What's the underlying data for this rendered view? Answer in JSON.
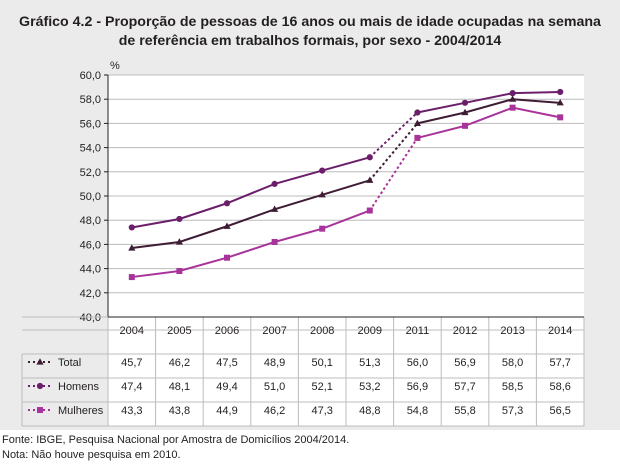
{
  "title_line1": "Gráfico 4.2 - Proporção de pessoas de 16 anos ou mais de idade ocupadas na semana",
  "title_line2": "de referência em trabalhos formais, por sexo - 2004/2014",
  "unit_label": "%",
  "source": "Fonte: IBGE, Pesquisa Nacional por Amostra de Domicílios 2004/2014.",
  "note": "Nota: Não houve pesquisa em 2010.",
  "colors": {
    "total": "#3f1d35",
    "homens": "#6b1f6b",
    "mulheres": "#a8339b",
    "grid": "#bcbcbc",
    "panel": "#ebebeb",
    "plot_bg": "#ffffff"
  },
  "chart_data": {
    "type": "line",
    "title": "Proporção de pessoas de 16 anos ou mais de idade ocupadas na semana de referência em trabalhos formais, por sexo - 2004/2014",
    "ylabel": "%",
    "ylim": [
      40,
      60
    ],
    "y_ticks": [
      "40,0",
      "42,0",
      "44,0",
      "46,0",
      "48,0",
      "50,0",
      "52,0",
      "54,0",
      "56,0",
      "58,0",
      "60,0"
    ],
    "categories": [
      "2004",
      "2005",
      "2006",
      "2007",
      "2008",
      "2009",
      "2011",
      "2012",
      "2013",
      "2014"
    ],
    "gap_after_index": 5,
    "series": [
      {
        "key": "total",
        "name": "Total",
        "marker": "triangle",
        "values": [
          45.7,
          46.2,
          47.5,
          48.9,
          50.1,
          51.3,
          56.0,
          56.9,
          58.0,
          57.7
        ],
        "labels": [
          "45,7",
          "46,2",
          "47,5",
          "48,9",
          "50,1",
          "51,3",
          "56,0",
          "56,9",
          "58,0",
          "57,7"
        ]
      },
      {
        "key": "homens",
        "name": "Homens",
        "marker": "circle",
        "values": [
          47.4,
          48.1,
          49.4,
          51.0,
          52.1,
          53.2,
          56.9,
          57.7,
          58.5,
          58.6
        ],
        "labels": [
          "47,4",
          "48,1",
          "49,4",
          "51,0",
          "52,1",
          "53,2",
          "56,9",
          "57,7",
          "58,5",
          "58,6"
        ]
      },
      {
        "key": "mulheres",
        "name": "Mulheres",
        "marker": "square",
        "values": [
          43.3,
          43.8,
          44.9,
          46.2,
          47.3,
          48.8,
          54.8,
          55.8,
          57.3,
          56.5
        ],
        "labels": [
          "43,3",
          "43,8",
          "44,9",
          "46,2",
          "47,3",
          "48,8",
          "54,8",
          "55,8",
          "57,3",
          "56,5"
        ]
      }
    ]
  }
}
